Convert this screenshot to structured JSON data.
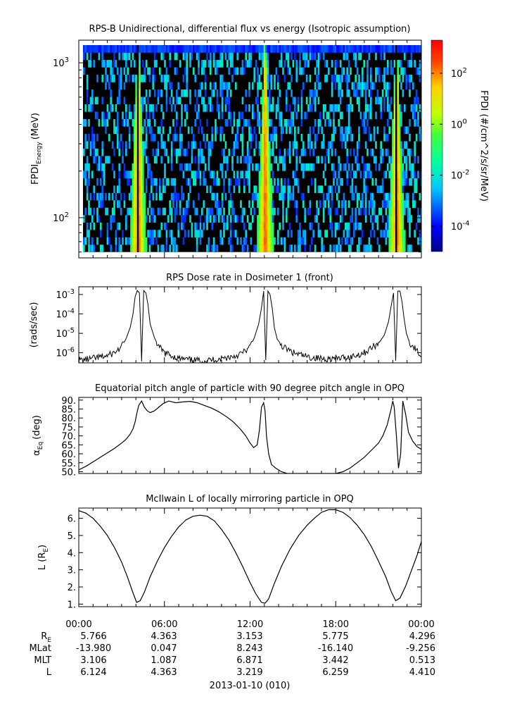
{
  "figure": {
    "date_label": "2013-01-10 (010)",
    "time_ticks": [
      "00:00",
      "06:00",
      "12:00",
      "18:00",
      "00:00"
    ],
    "ephemeris": {
      "rows": [
        {
          "label": "R",
          "label_sub": "E",
          "values": [
            "5.766",
            "4.363",
            "3.153",
            "5.775",
            "4.296"
          ]
        },
        {
          "label": "MLat",
          "label_sub": "",
          "values": [
            "-13.980",
            "0.047",
            "8.243",
            "-16.140",
            "-9.256"
          ]
        },
        {
          "label": "MLT",
          "label_sub": "",
          "values": [
            "3.106",
            "1.087",
            "6.871",
            "3.442",
            "0.513"
          ]
        },
        {
          "label": "L",
          "label_sub": "",
          "values": [
            "6.124",
            "4.363",
            "3.219",
            "6.259",
            "4.410"
          ]
        }
      ]
    }
  },
  "chart_data": [
    {
      "type": "heatmap",
      "title": "RPS-B  Unidirectional, differential flux vs energy (Isotropic assumption)",
      "ylabel": "FPDI",
      "ylabel_sub": "Energy",
      "ylabel_unit": "(MeV)",
      "yscale": "log",
      "ylim": [
        55,
        1400
      ],
      "yticks": [
        {
          "base": "10",
          "exp": "2",
          "value": 100
        },
        {
          "base": "10",
          "exp": "3",
          "value": 1000
        }
      ],
      "x_hours": [
        0,
        24
      ],
      "energy_range": [
        60,
        1300
      ],
      "peak_times_hours": [
        4.1,
        13.0,
        22.2
      ],
      "colorbar": {
        "label": "FPDI (#/cm^2/s/sr/MeV)",
        "scale": "log",
        "range_exp": [
          -5,
          3.3
        ],
        "ticks": [
          {
            "base": "10",
            "exp": "2",
            "value_exp": 2
          },
          {
            "base": "10",
            "exp": "0",
            "value_exp": 0
          },
          {
            "base": "10",
            "exp": "-2",
            "value_exp": -2
          },
          {
            "base": "10",
            "exp": "-4",
            "value_exp": -4
          }
        ]
      }
    },
    {
      "type": "line",
      "title": "RPS  Dose rate in Dosimeter 1 (front)",
      "ylabel": "(rads/sec)",
      "yscale": "log",
      "ylim": [
        3e-07,
        0.0025
      ],
      "yticks": [
        {
          "base": "10",
          "exp": "-3",
          "value": 0.001
        },
        {
          "base": "10",
          "exp": "-4",
          "value": 0.0001
        },
        {
          "base": "10",
          "exp": "-5",
          "value": 1e-05
        },
        {
          "base": "10",
          "exp": "-6",
          "value": 1e-06
        }
      ],
      "series": [
        {
          "x_hours": [
            0,
            1,
            2,
            2.5,
            3,
            3.3,
            3.6,
            3.8,
            3.95,
            4.1,
            4.25,
            4.4,
            4.55,
            4.7,
            4.85,
            5,
            5.3,
            5.6,
            6,
            7,
            8,
            9,
            10,
            11,
            11.5,
            12,
            12.3,
            12.6,
            12.8,
            12.95,
            13.1,
            13.25,
            13.4,
            13.55,
            13.7,
            13.9,
            14.3,
            15,
            16,
            17,
            18,
            19,
            20,
            20.6,
            21,
            21.4,
            21.7,
            21.9,
            22.05,
            22.2,
            22.35,
            22.5,
            22.65,
            22.8,
            22.95,
            23.2,
            23.6,
            24
          ],
          "values": [
            4e-07,
            5e-07,
            7e-07,
            1e-06,
            2e-06,
            5e-06,
            2e-05,
            0.0001,
            0.0008,
            0.0016,
            0.0012,
            4e-07,
            0.0016,
            0.0012,
            0.0003,
            3e-05,
            6e-06,
            2e-06,
            1e-06,
            5e-07,
            4e-07,
            4e-07,
            5e-07,
            7e-07,
            1e-06,
            2e-06,
            6e-06,
            3e-05,
            0.0002,
            0.0015,
            4e-07,
            0.0015,
            0.001,
            0.0002,
            2e-05,
            5e-06,
            2e-06,
            1e-06,
            6e-07,
            5e-07,
            5e-07,
            6e-07,
            1e-06,
            2e-06,
            3e-06,
            8e-06,
            4e-05,
            0.0003,
            0.0012,
            4e-07,
            0.0015,
            0.0015,
            0.0004,
            5e-05,
            1e-05,
            3e-06,
            1.5e-06,
            6e-07
          ]
        }
      ]
    },
    {
      "type": "line",
      "title": "Equatorial pitch angle of particle with 90 degree pitch angle in OPQ",
      "ylabel": "α",
      "ylabel_sub": "Eq",
      "ylabel_unit": "(deg)",
      "ylim": [
        49,
        91.5
      ],
      "yticks": [
        "50.",
        "55.",
        "60.",
        "65.",
        "70.",
        "75.",
        "80.",
        "85.",
        "90."
      ],
      "series": [
        {
          "x_hours": [
            0,
            0.5,
            1,
            1.5,
            2,
            2.5,
            3,
            3.3,
            3.6,
            3.8,
            3.95,
            4.05,
            4.2,
            4.4,
            4.6,
            4.8,
            5.0,
            5.3,
            5.6,
            5.9,
            6.3,
            6.8,
            7.3,
            7.8,
            8.3,
            8.8,
            9.3,
            9.8,
            10.3,
            10.8,
            11.3,
            11.7,
            12,
            12.25,
            12.5,
            12.65,
            12.8,
            12.95,
            13.05,
            13.15,
            13.3,
            13.5,
            13.8,
            14.2,
            14.6,
            15,
            15.5,
            16,
            16.5,
            17,
            17.5,
            18,
            18.5,
            19,
            19.5,
            20,
            20.5,
            21,
            21.3,
            21.6,
            21.85,
            22.0,
            22.1,
            22.25,
            22.4,
            22.55,
            22.7,
            22.9,
            23.1,
            23.4,
            23.7,
            24
          ],
          "values": [
            51,
            53,
            55.5,
            58,
            60.5,
            63,
            66,
            68,
            71,
            74,
            78,
            82,
            87,
            89.5,
            86,
            84,
            83,
            84,
            86,
            88,
            89.5,
            88.5,
            89,
            89.3,
            88.5,
            87,
            85.5,
            83.5,
            81,
            78,
            74,
            70,
            66,
            63.5,
            65,
            73,
            86,
            88.5,
            84,
            70,
            60,
            54,
            52,
            50,
            49,
            49,
            49,
            49,
            49,
            49,
            49,
            49,
            50,
            52,
            55,
            58,
            62,
            66,
            70,
            76,
            84,
            89.5,
            86,
            70,
            52,
            60,
            89.5,
            82,
            72,
            67,
            64,
            62.5
          ]
        }
      ]
    },
    {
      "type": "line",
      "title": "McIlwain L of locally mirroring particle in OPQ",
      "ylabel": "L (R",
      "ylabel_sub": "E",
      "ylabel_unit": ")",
      "ylim": [
        0.85,
        6.6
      ],
      "yticks": [
        "1.",
        "2.",
        "3.",
        "4.",
        "5.",
        "6."
      ],
      "series": [
        {
          "x_hours": [
            0,
            0.5,
            1,
            1.5,
            2,
            2.5,
            3,
            3.4,
            3.8,
            4.05,
            4.3,
            4.6,
            5,
            5.5,
            6,
            6.5,
            7,
            7.5,
            8,
            8.5,
            9,
            9.5,
            10,
            10.5,
            11,
            11.5,
            12,
            12.4,
            12.8,
            13.05,
            13.3,
            13.7,
            14.2,
            14.8,
            15.4,
            16,
            16.5,
            17,
            17.5,
            18,
            18.5,
            19,
            19.5,
            20,
            20.5,
            21,
            21.5,
            21.9,
            22.2,
            22.5,
            22.9,
            23.3,
            23.7,
            24
          ],
          "values": [
            6.45,
            6.3,
            6.0,
            5.55,
            5.0,
            4.3,
            3.45,
            2.6,
            1.65,
            1.1,
            1.2,
            1.7,
            2.6,
            3.5,
            4.3,
            4.95,
            5.5,
            5.9,
            6.12,
            6.18,
            6.12,
            5.85,
            5.35,
            4.75,
            4.0,
            3.15,
            2.25,
            1.6,
            1.1,
            1.05,
            1.3,
            2.2,
            3.2,
            4.2,
            5.0,
            5.6,
            6.0,
            6.35,
            6.5,
            6.5,
            6.35,
            6.05,
            5.6,
            5.05,
            4.35,
            3.5,
            2.6,
            1.7,
            1.2,
            1.35,
            2.05,
            2.95,
            3.85,
            4.65
          ]
        }
      ]
    }
  ]
}
